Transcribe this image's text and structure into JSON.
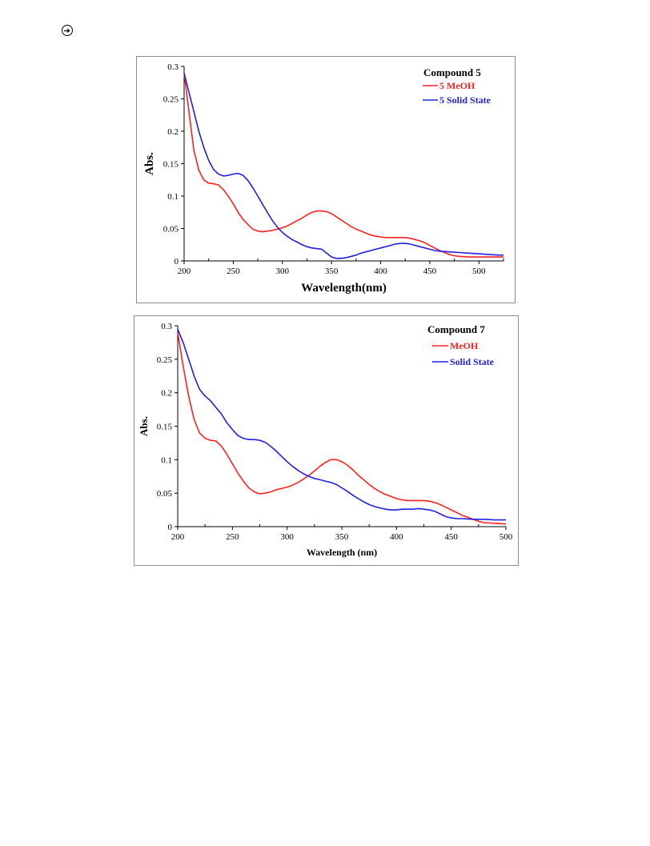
{
  "page": {
    "mark_icon": "circled-arrow-icon"
  },
  "chart_data": [
    {
      "type": "line",
      "title": "Compound 5",
      "xlabel": "Wavelength(nm)",
      "ylabel": "Abs.",
      "xlim": [
        200,
        525
      ],
      "ylim": [
        0,
        0.3
      ],
      "xticks": [
        200,
        250,
        300,
        350,
        400,
        450,
        500
      ],
      "yticks": [
        0,
        0.05,
        0.1,
        0.15,
        0.2,
        0.25,
        0.3
      ],
      "xtick_labels": [
        "200",
        "250",
        "300",
        "350",
        "400",
        "450",
        "500"
      ],
      "ytick_labels": [
        "0",
        "0.05",
        "0.1",
        "0.15",
        "0.2",
        "0.25",
        "0.3"
      ],
      "grid": false,
      "legend_position": "top-right",
      "series": [
        {
          "name": "5 MeOH",
          "color": "#ff2020",
          "x": [
            200,
            205,
            210,
            215,
            220,
            225,
            230,
            235,
            240,
            245,
            250,
            255,
            260,
            265,
            270,
            275,
            280,
            285,
            290,
            295,
            300,
            305,
            310,
            315,
            320,
            325,
            330,
            335,
            340,
            345,
            350,
            355,
            360,
            365,
            370,
            375,
            380,
            385,
            390,
            395,
            400,
            405,
            410,
            415,
            420,
            425,
            430,
            435,
            440,
            445,
            450,
            455,
            460,
            465,
            470,
            475,
            480,
            490,
            500,
            510,
            520,
            525
          ],
          "y": [
            0.29,
            0.23,
            0.17,
            0.14,
            0.125,
            0.12,
            0.119,
            0.117,
            0.11,
            0.1,
            0.088,
            0.075,
            0.064,
            0.056,
            0.049,
            0.046,
            0.045,
            0.046,
            0.047,
            0.049,
            0.051,
            0.054,
            0.058,
            0.062,
            0.066,
            0.071,
            0.075,
            0.077,
            0.077,
            0.076,
            0.073,
            0.068,
            0.063,
            0.058,
            0.053,
            0.049,
            0.046,
            0.043,
            0.04,
            0.038,
            0.037,
            0.036,
            0.036,
            0.036,
            0.036,
            0.036,
            0.035,
            0.033,
            0.031,
            0.028,
            0.024,
            0.02,
            0.016,
            0.013,
            0.01,
            0.008,
            0.007,
            0.006,
            0.006,
            0.006,
            0.006,
            0.006
          ]
        },
        {
          "name": "5 Solid State",
          "color": "#2020e0",
          "x": [
            200,
            205,
            210,
            215,
            220,
            225,
            230,
            235,
            240,
            245,
            250,
            255,
            260,
            265,
            270,
            275,
            280,
            285,
            290,
            295,
            300,
            305,
            310,
            315,
            320,
            325,
            330,
            335,
            340,
            345,
            350,
            355,
            360,
            365,
            370,
            375,
            380,
            385,
            390,
            395,
            400,
            405,
            410,
            415,
            420,
            425,
            430,
            435,
            440,
            445,
            450,
            455,
            460,
            470,
            480,
            490,
            500,
            510,
            520,
            525
          ],
          "y": [
            0.29,
            0.26,
            0.23,
            0.2,
            0.175,
            0.155,
            0.141,
            0.134,
            0.131,
            0.132,
            0.134,
            0.135,
            0.132,
            0.124,
            0.113,
            0.1,
            0.087,
            0.074,
            0.062,
            0.052,
            0.044,
            0.038,
            0.033,
            0.029,
            0.025,
            0.022,
            0.02,
            0.019,
            0.018,
            0.012,
            0.006,
            0.004,
            0.004,
            0.005,
            0.007,
            0.009,
            0.012,
            0.014,
            0.016,
            0.018,
            0.02,
            0.022,
            0.024,
            0.026,
            0.027,
            0.027,
            0.026,
            0.024,
            0.022,
            0.02,
            0.018,
            0.016,
            0.015,
            0.014,
            0.013,
            0.012,
            0.011,
            0.01,
            0.009,
            0.009
          ]
        }
      ]
    },
    {
      "type": "line",
      "title": "Compound 7",
      "xlabel": "Wavelength (nm)",
      "ylabel": "Abs.",
      "xlim": [
        200,
        500
      ],
      "ylim": [
        0,
        0.3
      ],
      "xticks": [
        200,
        250,
        300,
        350,
        400,
        450,
        500
      ],
      "yticks": [
        0,
        0.05,
        0.1,
        0.15,
        0.2,
        0.25,
        0.3
      ],
      "xtick_labels": [
        "200",
        "250",
        "300",
        "350",
        "400",
        "450",
        "500"
      ],
      "ytick_labels": [
        "0",
        "0.05",
        "0.1",
        "0.15",
        "0.2",
        "0.25",
        "0.3"
      ],
      "grid": false,
      "legend_position": "top-right",
      "series": [
        {
          "name": "MeOH",
          "color": "#ff2020",
          "x": [
            200,
            205,
            210,
            215,
            220,
            225,
            230,
            235,
            240,
            245,
            250,
            255,
            260,
            265,
            270,
            275,
            280,
            285,
            290,
            295,
            300,
            305,
            310,
            315,
            320,
            325,
            330,
            335,
            340,
            345,
            350,
            355,
            360,
            365,
            370,
            375,
            380,
            385,
            390,
            395,
            400,
            405,
            410,
            415,
            420,
            425,
            430,
            435,
            440,
            445,
            450,
            455,
            460,
            465,
            470,
            475,
            480,
            490,
            500
          ],
          "y": [
            0.29,
            0.24,
            0.195,
            0.16,
            0.14,
            0.132,
            0.129,
            0.128,
            0.12,
            0.108,
            0.094,
            0.08,
            0.068,
            0.058,
            0.052,
            0.049,
            0.05,
            0.052,
            0.055,
            0.057,
            0.059,
            0.062,
            0.066,
            0.071,
            0.077,
            0.083,
            0.09,
            0.096,
            0.1,
            0.1,
            0.097,
            0.092,
            0.085,
            0.077,
            0.07,
            0.063,
            0.057,
            0.052,
            0.048,
            0.045,
            0.042,
            0.04,
            0.039,
            0.039,
            0.039,
            0.039,
            0.038,
            0.036,
            0.033,
            0.029,
            0.025,
            0.021,
            0.017,
            0.014,
            0.011,
            0.008,
            0.006,
            0.005,
            0.004
          ]
        },
        {
          "name": "Solid State",
          "color": "#2020e0",
          "x": [
            200,
            205,
            210,
            215,
            220,
            225,
            230,
            235,
            240,
            245,
            250,
            255,
            260,
            265,
            270,
            275,
            280,
            285,
            290,
            295,
            300,
            305,
            310,
            315,
            320,
            325,
            330,
            335,
            340,
            345,
            350,
            355,
            360,
            365,
            370,
            375,
            380,
            385,
            390,
            395,
            400,
            405,
            410,
            415,
            420,
            425,
            430,
            435,
            440,
            445,
            450,
            455,
            460,
            470,
            480,
            490,
            500
          ],
          "y": [
            0.295,
            0.275,
            0.25,
            0.225,
            0.205,
            0.195,
            0.188,
            0.178,
            0.168,
            0.155,
            0.145,
            0.136,
            0.132,
            0.13,
            0.13,
            0.129,
            0.126,
            0.12,
            0.113,
            0.105,
            0.097,
            0.09,
            0.084,
            0.079,
            0.075,
            0.072,
            0.07,
            0.068,
            0.066,
            0.063,
            0.058,
            0.053,
            0.047,
            0.042,
            0.037,
            0.033,
            0.03,
            0.028,
            0.026,
            0.025,
            0.025,
            0.026,
            0.026,
            0.026,
            0.027,
            0.026,
            0.025,
            0.023,
            0.019,
            0.015,
            0.013,
            0.012,
            0.012,
            0.011,
            0.011,
            0.01,
            0.01
          ]
        }
      ]
    }
  ]
}
